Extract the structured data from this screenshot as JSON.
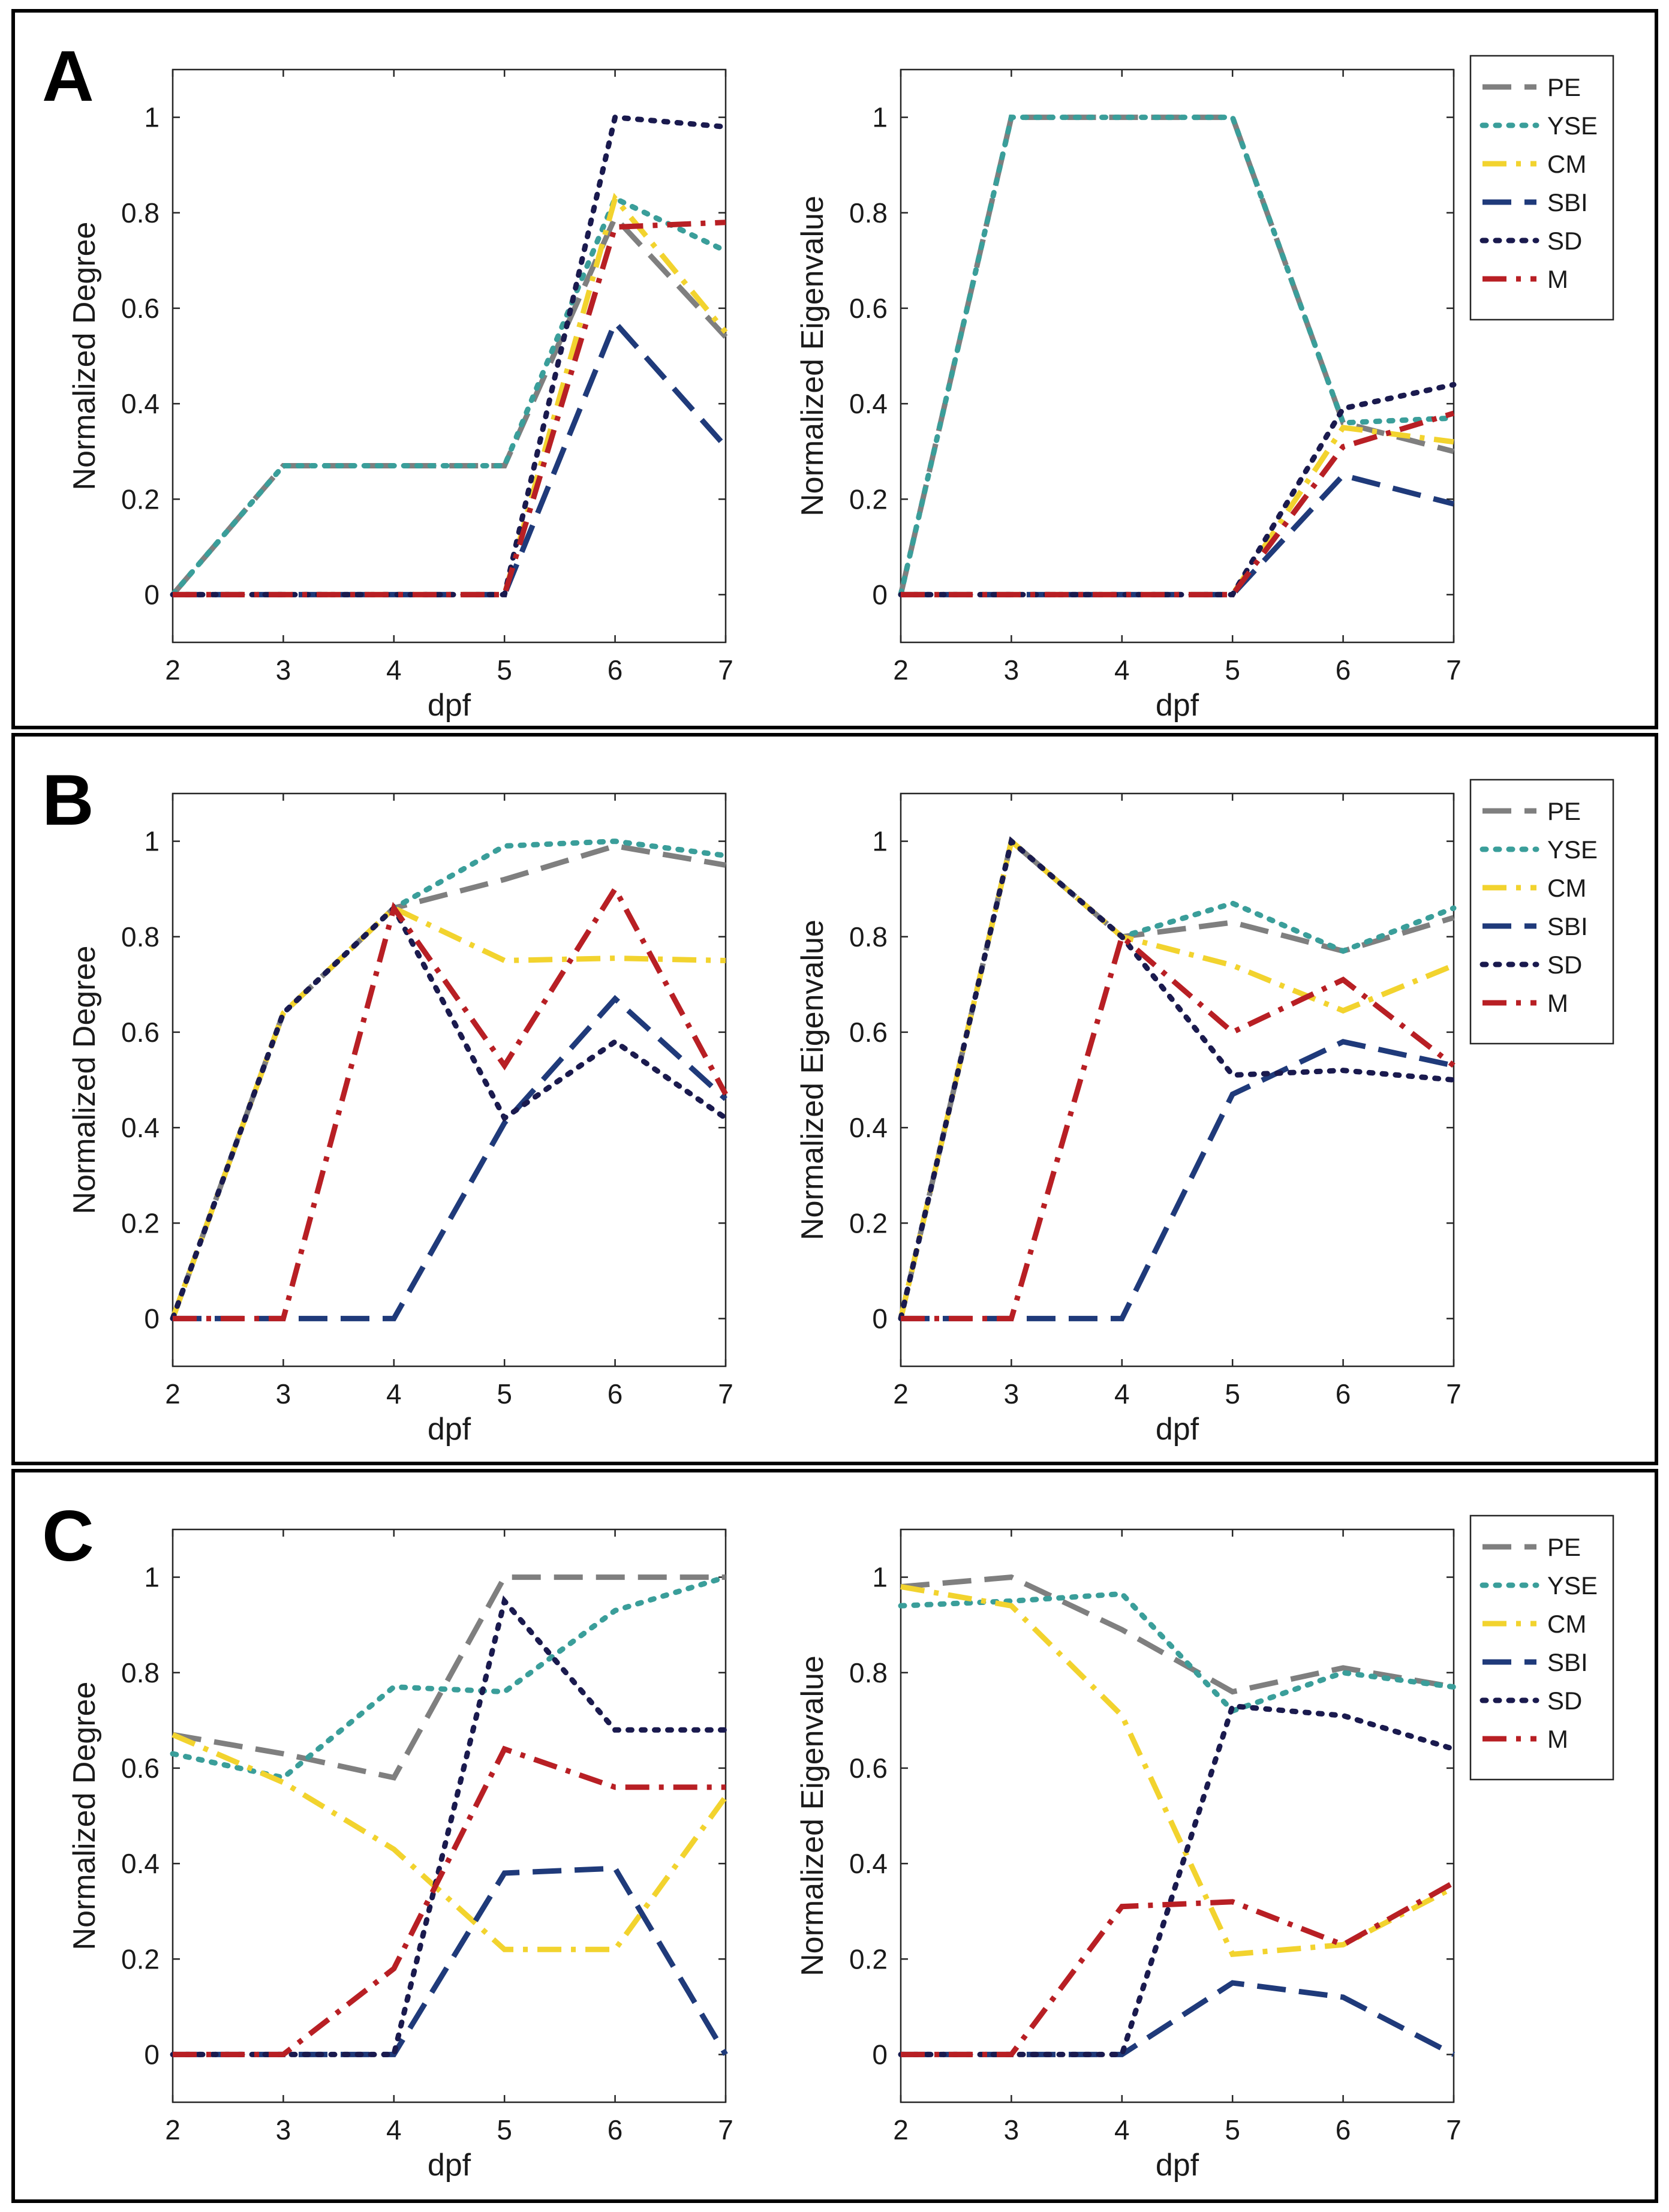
{
  "figure": {
    "xlabel": "dpf",
    "ylabel_left": "Normalized Degree",
    "ylabel_right": "Normalized Eigenvalue",
    "x_ticks": [
      2,
      3,
      4,
      5,
      6,
      7
    ],
    "y_ticks": [
      0,
      0.2,
      0.4,
      0.6,
      0.8,
      1
    ],
    "y_tick_labels": [
      "0",
      "0.2",
      "0.4",
      "0.6",
      "0.8",
      "1"
    ]
  },
  "legend": [
    {
      "key": "PE",
      "label": "PE",
      "color": "#7f7f7f",
      "dash": "long"
    },
    {
      "key": "YSE",
      "label": "YSE",
      "color": "#3a9e9a",
      "dash": "dot"
    },
    {
      "key": "CM",
      "label": "CM",
      "color": "#f2d32e",
      "dash": "dashdot"
    },
    {
      "key": "SBI",
      "label": "SBI",
      "color": "#1f3a7a",
      "dash": "long"
    },
    {
      "key": "SD",
      "label": "SD",
      "color": "#1a1a4e",
      "dash": "dot"
    },
    {
      "key": "M",
      "label": "M",
      "color": "#b81f24",
      "dash": "dashdot"
    }
  ],
  "chart_data": [
    {
      "panel": "A",
      "side": "left",
      "type": "line",
      "title": "",
      "xlabel": "dpf",
      "ylabel": "Normalized Degree",
      "x": [
        2,
        3,
        4,
        5,
        6,
        7
      ],
      "xlim": [
        2,
        7
      ],
      "ylim": [
        -0.1,
        1.1
      ],
      "series": [
        {
          "name": "PE",
          "values": [
            0,
            0.27,
            0.27,
            0.27,
            0.79,
            0.54
          ]
        },
        {
          "name": "YSE",
          "values": [
            0,
            0.27,
            0.27,
            0.27,
            0.83,
            0.72
          ]
        },
        {
          "name": "CM",
          "values": [
            0,
            0,
            0,
            0,
            0.83,
            0.55
          ]
        },
        {
          "name": "SBI",
          "values": [
            0,
            0,
            0,
            0,
            0.57,
            0.31
          ]
        },
        {
          "name": "SD",
          "values": [
            0,
            0,
            0,
            0,
            1.0,
            0.98
          ]
        },
        {
          "name": "M",
          "values": [
            0,
            0,
            0,
            0,
            0.77,
            0.78
          ]
        }
      ]
    },
    {
      "panel": "A",
      "side": "right",
      "type": "line",
      "title": "",
      "xlabel": "dpf",
      "ylabel": "Normalized Eigenvalue",
      "x": [
        2,
        3,
        4,
        5,
        6,
        7
      ],
      "xlim": [
        2,
        7
      ],
      "ylim": [
        -0.1,
        1.1
      ],
      "series": [
        {
          "name": "PE",
          "values": [
            0,
            1.0,
            1.0,
            1.0,
            0.36,
            0.3
          ]
        },
        {
          "name": "YSE",
          "values": [
            0,
            1.0,
            1.0,
            1.0,
            0.36,
            0.37
          ]
        },
        {
          "name": "CM",
          "values": [
            0,
            0,
            0,
            0,
            0.35,
            0.32
          ]
        },
        {
          "name": "SBI",
          "values": [
            0,
            0,
            0,
            0,
            0.25,
            0.19
          ]
        },
        {
          "name": "SD",
          "values": [
            0,
            0,
            0,
            0,
            0.39,
            0.44
          ]
        },
        {
          "name": "M",
          "values": [
            0,
            0,
            0,
            0,
            0.31,
            0.38
          ]
        }
      ]
    },
    {
      "panel": "B",
      "side": "left",
      "type": "line",
      "title": "",
      "xlabel": "dpf",
      "ylabel": "Normalized Degree",
      "x": [
        2,
        3,
        4,
        5,
        6,
        7
      ],
      "xlim": [
        2,
        7
      ],
      "ylim": [
        -0.1,
        1.1
      ],
      "series": [
        {
          "name": "PE",
          "values": [
            0,
            0.64,
            0.86,
            0.92,
            0.99,
            0.95
          ]
        },
        {
          "name": "YSE",
          "values": [
            0,
            0.64,
            0.86,
            0.99,
            1.0,
            0.97
          ]
        },
        {
          "name": "CM",
          "values": [
            0,
            0.64,
            0.86,
            0.75,
            0.755,
            0.75
          ]
        },
        {
          "name": "SBI",
          "values": [
            0,
            0,
            0,
            0.41,
            0.67,
            0.46
          ]
        },
        {
          "name": "SD",
          "values": [
            0,
            0.64,
            0.86,
            0.42,
            0.58,
            0.42
          ]
        },
        {
          "name": "M",
          "values": [
            0,
            0,
            0.86,
            0.53,
            0.9,
            0.47
          ]
        }
      ]
    },
    {
      "panel": "B",
      "side": "right",
      "type": "line",
      "title": "",
      "xlabel": "dpf",
      "ylabel": "Normalized Eigenvalue",
      "x": [
        2,
        3,
        4,
        5,
        6,
        7
      ],
      "xlim": [
        2,
        7
      ],
      "ylim": [
        -0.1,
        1.1
      ],
      "series": [
        {
          "name": "PE",
          "values": [
            0,
            1.0,
            0.8,
            0.83,
            0.77,
            0.84
          ]
        },
        {
          "name": "YSE",
          "values": [
            0,
            1.0,
            0.8,
            0.87,
            0.77,
            0.86
          ]
        },
        {
          "name": "CM",
          "values": [
            0,
            1.0,
            0.8,
            0.74,
            0.645,
            0.74
          ]
        },
        {
          "name": "SBI",
          "values": [
            0,
            0,
            0,
            0.47,
            0.58,
            0.53
          ]
        },
        {
          "name": "SD",
          "values": [
            0,
            1.0,
            0.8,
            0.51,
            0.52,
            0.5
          ]
        },
        {
          "name": "M",
          "values": [
            0,
            0,
            0.8,
            0.6,
            0.71,
            0.53
          ]
        }
      ]
    },
    {
      "panel": "C",
      "side": "left",
      "type": "line",
      "title": "",
      "xlabel": "dpf",
      "ylabel": "Normalized Degree",
      "x": [
        2,
        3,
        4,
        5,
        6,
        7
      ],
      "xlim": [
        2,
        7
      ],
      "ylim": [
        -0.1,
        1.1
      ],
      "series": [
        {
          "name": "PE",
          "values": [
            0.67,
            0.63,
            0.58,
            1.0,
            1.0,
            1.0
          ]
        },
        {
          "name": "YSE",
          "values": [
            0.63,
            0.58,
            0.77,
            0.76,
            0.93,
            1.0
          ]
        },
        {
          "name": "CM",
          "values": [
            0.67,
            0.57,
            0.43,
            0.22,
            0.22,
            0.54
          ]
        },
        {
          "name": "SBI",
          "values": [
            0,
            0,
            0,
            0.38,
            0.39,
            0.0
          ]
        },
        {
          "name": "SD",
          "values": [
            0,
            0,
            0,
            0.95,
            0.68,
            0.68
          ]
        },
        {
          "name": "M",
          "values": [
            0,
            0,
            0.18,
            0.64,
            0.56,
            0.56
          ]
        }
      ]
    },
    {
      "panel": "C",
      "side": "right",
      "type": "line",
      "title": "",
      "xlabel": "dpf",
      "ylabel": "Normalized Eigenvalue",
      "x": [
        2,
        3,
        4,
        5,
        6,
        7
      ],
      "xlim": [
        2,
        7
      ],
      "ylim": [
        -0.1,
        1.1
      ],
      "series": [
        {
          "name": "PE",
          "values": [
            0.98,
            1.0,
            0.89,
            0.76,
            0.81,
            0.77
          ]
        },
        {
          "name": "YSE",
          "values": [
            0.94,
            0.95,
            0.965,
            0.72,
            0.8,
            0.77
          ]
        },
        {
          "name": "CM",
          "values": [
            0.98,
            0.94,
            0.71,
            0.21,
            0.23,
            0.35
          ]
        },
        {
          "name": "SBI",
          "values": [
            0,
            0,
            0,
            0.15,
            0.12,
            0.0
          ]
        },
        {
          "name": "SD",
          "values": [
            0,
            0,
            0,
            0.73,
            0.71,
            0.64
          ]
        },
        {
          "name": "M",
          "values": [
            0,
            0,
            0.31,
            0.32,
            0.23,
            0.36
          ]
        }
      ]
    }
  ],
  "panels": [
    {
      "letter": "A"
    },
    {
      "letter": "B"
    },
    {
      "letter": "C"
    }
  ]
}
